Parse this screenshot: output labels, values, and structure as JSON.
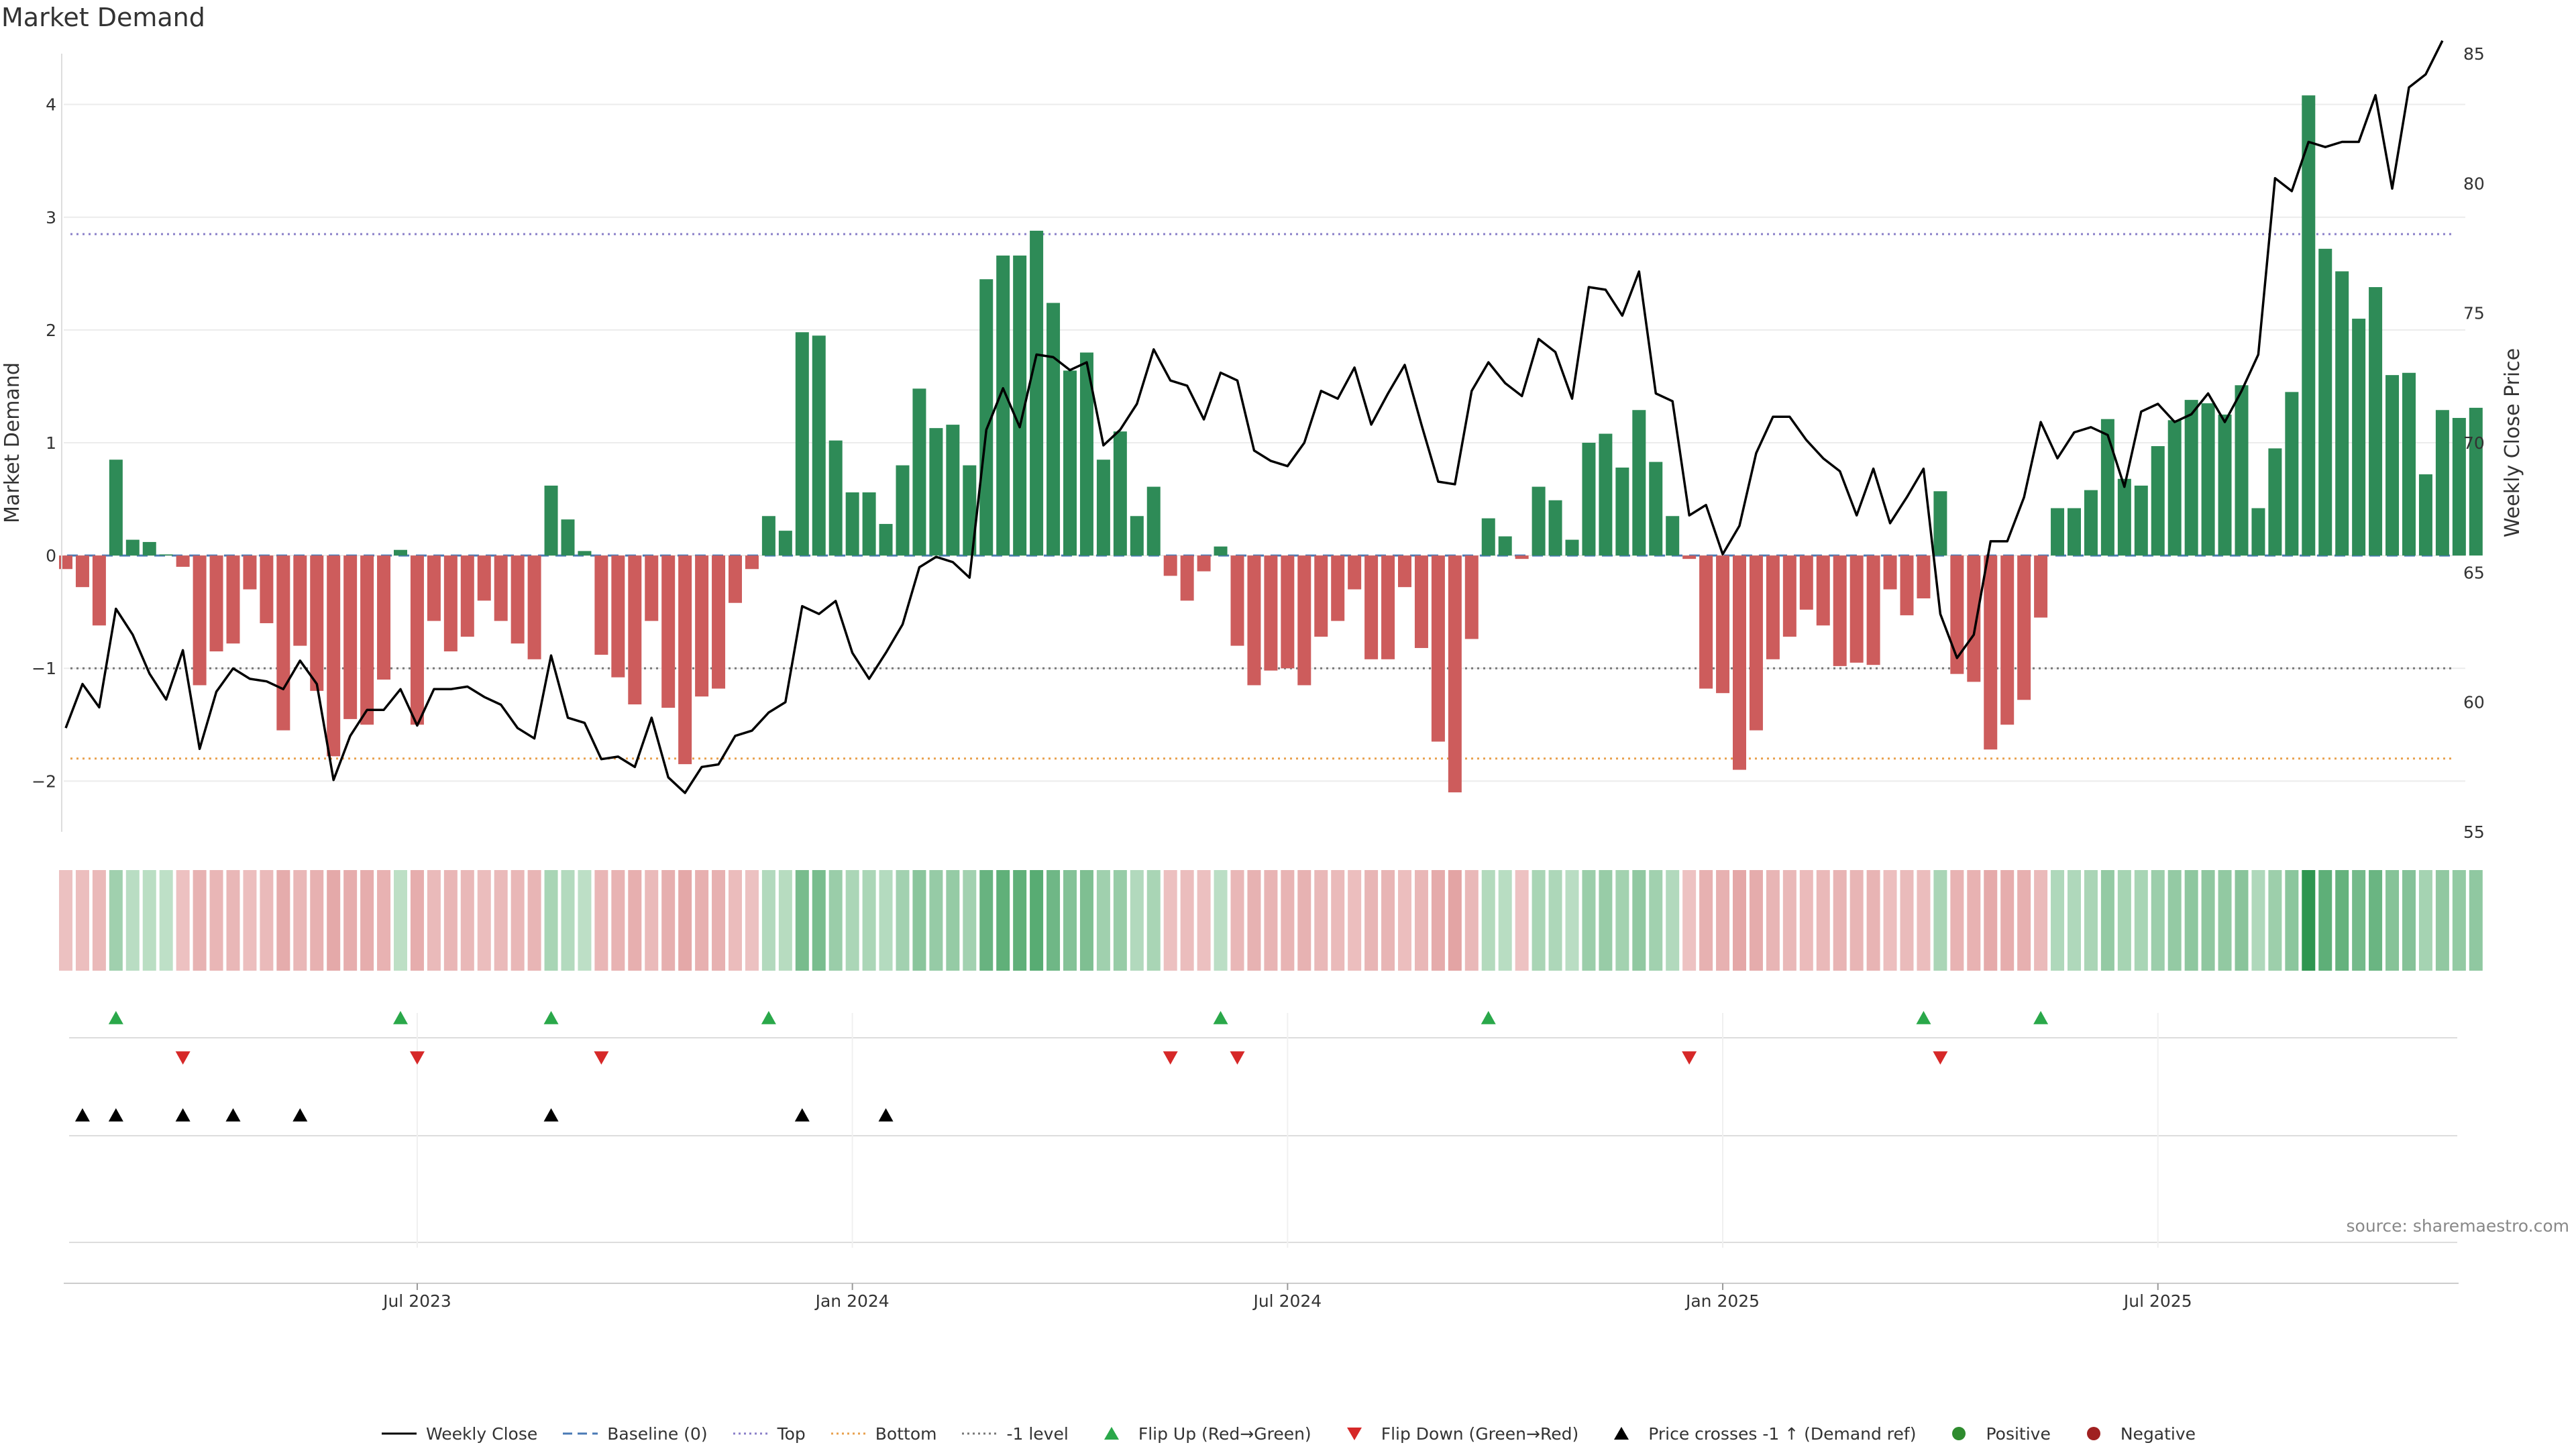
{
  "title": "Market Demand",
  "source": "source: sharemaestro.com",
  "colors": {
    "pos_bar": "#2e8b57",
    "neg_bar": "#cd5c5c",
    "price": "#000000",
    "top": "#8a7fc8",
    "bottom": "#e8a04d",
    "minus1": "#777777",
    "baseline": "#4a7ab5",
    "flip_up": "#2aa84a",
    "flip_down": "#d62828",
    "cross": "#000000"
  },
  "chart_data": {
    "type": "bar+line",
    "title": "Market Demand",
    "ylabel_left": "Market Demand",
    "ylabel_right": "Weekly Close Price",
    "ylim_left": [
      -2.45,
      4.45
    ],
    "ylim_right": [
      55,
      85
    ],
    "left_ticks": [
      -2,
      -1,
      0,
      1,
      2,
      3,
      4
    ],
    "right_ticks": [
      55,
      60,
      65,
      70,
      75,
      80,
      85
    ],
    "x_ticks": [
      {
        "label": "Jul 2023",
        "week": 21
      },
      {
        "label": "Jan 2024",
        "week": 47
      },
      {
        "label": "Jul 2024",
        "week": 73
      },
      {
        "label": "Jan 2025",
        "week": 99
      },
      {
        "label": "Jul 2025",
        "week": 125
      }
    ],
    "levels": {
      "top": 2.85,
      "bottom": -1.8,
      "minus1": -1.0,
      "baseline": 0
    },
    "demand": [
      -0.12,
      -0.28,
      -0.62,
      0.85,
      0.14,
      0.12,
      0.01,
      -0.1,
      -1.15,
      -0.85,
      -0.78,
      -0.3,
      -0.6,
      -1.55,
      -0.8,
      -1.2,
      -1.78,
      -1.45,
      -1.5,
      -1.1,
      0.05,
      -1.5,
      -0.58,
      -0.85,
      -0.72,
      -0.4,
      -0.58,
      -0.78,
      -0.92,
      0.62,
      0.32,
      0.04,
      -0.88,
      -1.08,
      -1.32,
      -0.58,
      -1.35,
      -1.85,
      -1.25,
      -1.18,
      -0.42,
      -0.12,
      0.35,
      0.22,
      1.98,
      1.95,
      1.02,
      0.56,
      0.56,
      0.28,
      0.8,
      1.48,
      1.13,
      1.16,
      0.8,
      2.45,
      2.66,
      2.66,
      2.88,
      2.24,
      1.64,
      1.8,
      0.85,
      1.1,
      0.35,
      0.61,
      -0.18,
      -0.4,
      -0.14,
      0.08,
      -0.8,
      -1.15,
      -1.02,
      -1.0,
      -1.15,
      -0.72,
      -0.58,
      -0.3,
      -0.92,
      -0.92,
      -0.28,
      -0.82,
      -1.65,
      -2.1,
      -0.74,
      0.33,
      0.17,
      -0.03,
      0.61,
      0.49,
      0.14,
      1.0,
      1.08,
      0.78,
      1.29,
      0.83,
      0.35,
      -0.03,
      -1.18,
      -1.22,
      -1.9,
      -1.55,
      -0.92,
      -0.72,
      -0.48,
      -0.62,
      -0.98,
      -0.95,
      -0.97,
      -0.3,
      -0.53,
      -0.38,
      0.57,
      -1.05,
      -1.12,
      -1.72,
      -1.5,
      -1.28,
      -0.55,
      0.42,
      0.42,
      0.58,
      1.21,
      0.68,
      0.62,
      0.97,
      1.2,
      1.38,
      1.35,
      1.25,
      1.51,
      0.42,
      0.95,
      1.45,
      4.08,
      2.72,
      2.52,
      2.1,
      2.38,
      1.6,
      1.62,
      0.72,
      1.29,
      1.22,
      1.31
    ],
    "price": [
      59.0,
      60.7,
      59.8,
      63.6,
      62.6,
      61.1,
      60.1,
      62.0,
      58.2,
      60.4,
      61.3,
      60.9,
      60.8,
      60.5,
      61.6,
      60.7,
      57.0,
      58.7,
      59.7,
      59.7,
      60.5,
      59.1,
      60.5,
      60.5,
      60.6,
      60.2,
      59.9,
      59.0,
      58.6,
      61.8,
      59.4,
      59.2,
      57.8,
      57.9,
      57.5,
      59.4,
      57.1,
      56.5,
      57.5,
      57.6,
      58.7,
      58.9,
      59.6,
      60.0,
      63.7,
      63.4,
      63.9,
      61.9,
      60.9,
      61.9,
      63.0,
      65.2,
      65.6,
      65.4,
      64.8,
      70.5,
      72.1,
      70.6,
      73.4,
      73.3,
      72.8,
      73.1,
      69.9,
      70.5,
      71.5,
      73.6,
      72.4,
      72.2,
      70.9,
      72.7,
      72.4,
      69.7,
      69.3,
      69.1,
      70.0,
      72.0,
      71.7,
      72.9,
      70.7,
      71.9,
      73.0,
      70.7,
      68.5,
      68.4,
      72.0,
      73.1,
      72.3,
      71.8,
      74.0,
      73.5,
      71.7,
      76.0,
      75.9,
      74.9,
      76.6,
      71.9,
      71.6,
      67.2,
      67.6,
      65.7,
      66.8,
      69.6,
      71.0,
      71.0,
      70.1,
      69.4,
      68.9,
      67.2,
      69.0,
      66.9,
      67.9,
      69.0,
      63.4,
      61.7,
      62.6,
      66.2,
      66.2,
      67.9,
      70.8,
      69.4,
      70.4,
      70.6,
      70.3,
      68.3,
      71.2,
      71.5,
      70.8,
      71.1,
      71.9,
      70.8,
      72.0,
      73.4,
      80.2,
      79.7,
      81.6,
      81.4,
      81.6,
      81.6,
      83.4,
      79.8,
      83.7,
      84.2,
      85.5
    ],
    "flip_up_weeks": [
      3,
      20,
      29,
      42,
      69,
      85,
      111,
      118
    ],
    "flip_down_weeks": [
      7,
      21,
      32,
      66,
      70,
      97,
      112
    ],
    "price_cross_weeks": [
      1,
      3,
      7,
      10,
      14,
      29,
      44,
      49
    ],
    "legend": [
      {
        "label": "Weekly Close",
        "kind": "line-solid"
      },
      {
        "label": "Baseline (0)",
        "kind": "line-dash"
      },
      {
        "label": "Top",
        "kind": "line-dot-top"
      },
      {
        "label": "Bottom",
        "kind": "line-dot-bottom"
      },
      {
        "label": "-1 level",
        "kind": "line-dot-minus1"
      },
      {
        "label": "Flip Up (Red→Green)",
        "kind": "tri-up-green"
      },
      {
        "label": "Flip Down (Green→Red)",
        "kind": "tri-down-red"
      },
      {
        "label": "Price crosses -1 ↑ (Demand ref)",
        "kind": "tri-up-black"
      },
      {
        "label": "Positive",
        "kind": "dot-green"
      },
      {
        "label": "Negative",
        "kind": "dot-red"
      }
    ]
  }
}
